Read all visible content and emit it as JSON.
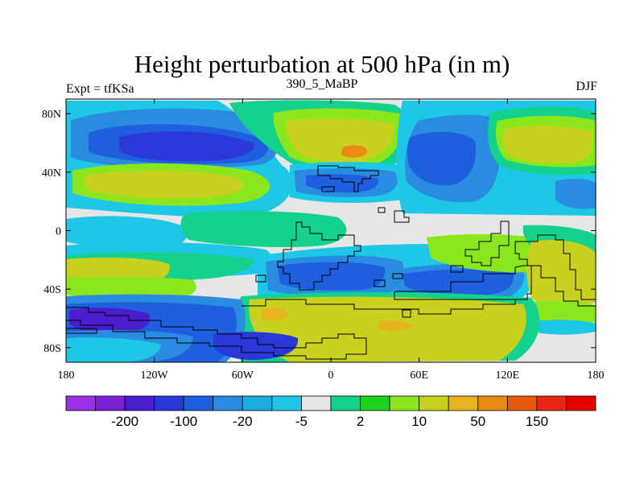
{
  "chart_data": {
    "type": "heatmap",
    "title": "Height perturbation at 500 hPa (in m)",
    "left_string": "Expt = tfKSa",
    "center_string": "390_5_MaBP",
    "right_string": "DJF",
    "xlim": [
      -180,
      180
    ],
    "ylim": [
      -90,
      90
    ],
    "x_ticks": [
      {
        "value": -180,
        "label": "180"
      },
      {
        "value": -120,
        "label": "120W"
      },
      {
        "value": -60,
        "label": "60W"
      },
      {
        "value": 0,
        "label": "0"
      },
      {
        "value": 60,
        "label": "60E"
      },
      {
        "value": 120,
        "label": "120E"
      },
      {
        "value": 180,
        "label": "180"
      }
    ],
    "y_ticks": [
      {
        "value": 80,
        "label": "80N"
      },
      {
        "value": 40,
        "label": "40N"
      },
      {
        "value": 0,
        "label": "0"
      },
      {
        "value": -40,
        "label": "40S"
      },
      {
        "value": -80,
        "label": "80S"
      }
    ],
    "colorbar": {
      "colors": [
        "#9b30e8",
        "#7a21d8",
        "#4a1ecf",
        "#2a38d8",
        "#1e5fe0",
        "#2a8ce0",
        "#1aaee0",
        "#1ec7e6",
        "#e6e6e6",
        "#14d28c",
        "#1ed21e",
        "#8ce61e",
        "#c8d21e",
        "#e6b41e",
        "#e68c14",
        "#e65a0a",
        "#e62814",
        "#e60000"
      ],
      "labels": [
        {
          "after_index": 1,
          "text": "-200"
        },
        {
          "after_index": 3,
          "text": "-100"
        },
        {
          "after_index": 5,
          "text": "-20"
        },
        {
          "after_index": 7,
          "text": "-5"
        },
        {
          "after_index": 9,
          "text": "2"
        },
        {
          "after_index": 11,
          "text": "10"
        },
        {
          "after_index": 13,
          "text": "50"
        },
        {
          "after_index": 15,
          "text": "150"
        }
      ]
    },
    "fill_levels": {
      "gray": "#e6e6e6",
      "lightblue": "#1ec7e6",
      "cyan": "#2a8ce0",
      "blue": "#1e5fe0",
      "darkblue": "#2a38d8",
      "indigo": "#4a1ecf",
      "teal": "#14d28c",
      "green": "#8ce61e",
      "olive": "#c8d21e",
      "orange": "#e6b41e",
      "darkorange": "#e68c14"
    }
  }
}
